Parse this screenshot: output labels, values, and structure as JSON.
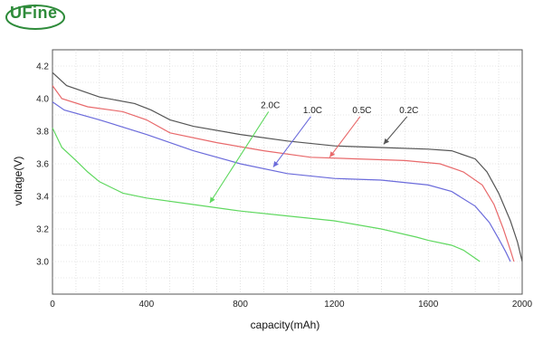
{
  "brand": {
    "name": "UFine",
    "color": "#2e8b3a"
  },
  "chart_data": {
    "type": "line",
    "title": "",
    "xlabel": "capacity(mAh)",
    "ylabel": "voltage(V)",
    "xlim": [
      0,
      2000
    ],
    "ylim": [
      2.8,
      4.3
    ],
    "xticks": [
      0,
      400,
      800,
      1200,
      1600,
      2000
    ],
    "yticks": [
      3.0,
      3.2,
      3.4,
      3.6,
      3.8,
      4.0,
      4.2
    ],
    "grid": true,
    "series": [
      {
        "name": "0.2C",
        "color": "#555555",
        "points": [
          [
            0,
            4.16
          ],
          [
            60,
            4.08
          ],
          [
            200,
            4.01
          ],
          [
            350,
            3.97
          ],
          [
            420,
            3.93
          ],
          [
            500,
            3.87
          ],
          [
            600,
            3.83
          ],
          [
            800,
            3.78
          ],
          [
            1000,
            3.74
          ],
          [
            1200,
            3.71
          ],
          [
            1400,
            3.7
          ],
          [
            1600,
            3.69
          ],
          [
            1700,
            3.68
          ],
          [
            1800,
            3.63
          ],
          [
            1850,
            3.55
          ],
          [
            1900,
            3.42
          ],
          [
            1950,
            3.25
          ],
          [
            1980,
            3.12
          ],
          [
            2000,
            3.0
          ]
        ]
      },
      {
        "name": "0.5C",
        "color": "#e8696b",
        "points": [
          [
            0,
            4.08
          ],
          [
            40,
            4.0
          ],
          [
            150,
            3.95
          ],
          [
            300,
            3.92
          ],
          [
            400,
            3.87
          ],
          [
            500,
            3.79
          ],
          [
            700,
            3.73
          ],
          [
            900,
            3.68
          ],
          [
            1100,
            3.64
          ],
          [
            1300,
            3.63
          ],
          [
            1500,
            3.62
          ],
          [
            1650,
            3.6
          ],
          [
            1750,
            3.55
          ],
          [
            1830,
            3.47
          ],
          [
            1880,
            3.35
          ],
          [
            1920,
            3.2
          ],
          [
            1950,
            3.07
          ],
          [
            1965,
            3.0
          ]
        ]
      },
      {
        "name": "1.0C",
        "color": "#6b6bdb",
        "points": [
          [
            0,
            3.98
          ],
          [
            50,
            3.93
          ],
          [
            200,
            3.87
          ],
          [
            400,
            3.78
          ],
          [
            600,
            3.68
          ],
          [
            800,
            3.6
          ],
          [
            1000,
            3.54
          ],
          [
            1200,
            3.51
          ],
          [
            1400,
            3.5
          ],
          [
            1600,
            3.47
          ],
          [
            1700,
            3.43
          ],
          [
            1800,
            3.34
          ],
          [
            1860,
            3.24
          ],
          [
            1900,
            3.14
          ],
          [
            1930,
            3.06
          ],
          [
            1950,
            3.0
          ]
        ]
      },
      {
        "name": "2.0C",
        "color": "#5fd85f",
        "points": [
          [
            0,
            3.82
          ],
          [
            40,
            3.7
          ],
          [
            100,
            3.62
          ],
          [
            150,
            3.55
          ],
          [
            200,
            3.49
          ],
          [
            300,
            3.42
          ],
          [
            400,
            3.39
          ],
          [
            600,
            3.35
          ],
          [
            800,
            3.31
          ],
          [
            1000,
            3.28
          ],
          [
            1200,
            3.25
          ],
          [
            1400,
            3.2
          ],
          [
            1550,
            3.15
          ],
          [
            1600,
            3.13
          ],
          [
            1700,
            3.1
          ],
          [
            1750,
            3.07
          ],
          [
            1800,
            3.02
          ],
          [
            1820,
            3.0
          ]
        ]
      }
    ],
    "annotations": [
      {
        "label": "2.0C",
        "series": "2.0C",
        "from": [
          920,
          3.92
        ],
        "to": [
          670,
          3.36
        ]
      },
      {
        "label": "1.0C",
        "series": "1.0C",
        "from": [
          1100,
          3.89
        ],
        "to": [
          940,
          3.58
        ]
      },
      {
        "label": "0.5C",
        "series": "0.5C",
        "from": [
          1310,
          3.89
        ],
        "to": [
          1180,
          3.64
        ]
      },
      {
        "label": "0.2C",
        "series": "0.2C",
        "from": [
          1510,
          3.89
        ],
        "to": [
          1410,
          3.72
        ]
      }
    ]
  }
}
